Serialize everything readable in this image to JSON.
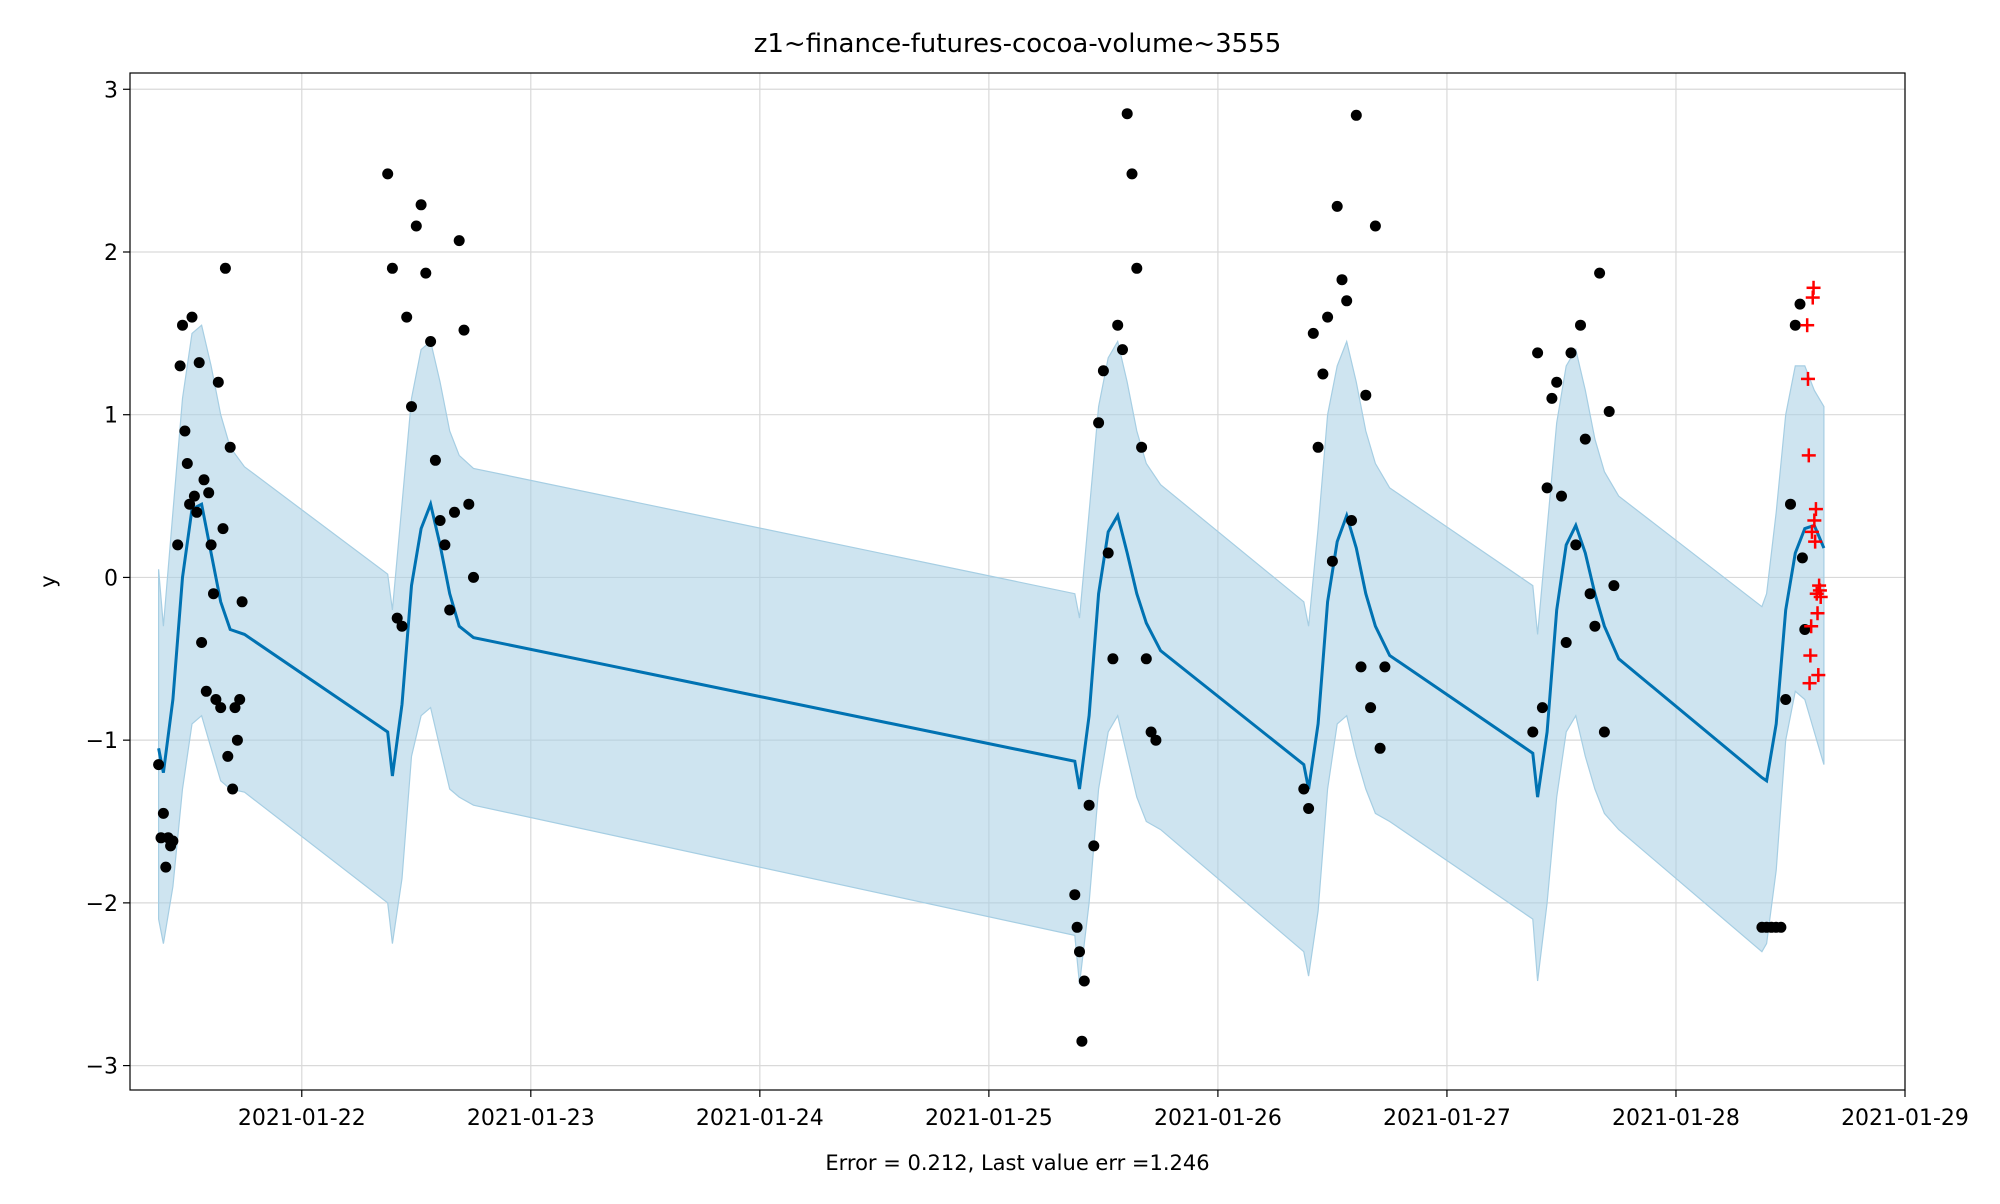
{
  "chart_data": {
    "type": "line",
    "title": "z1~finance-futures-cocoa-volume~3555",
    "xlabel": "Error = 0.212, Last value err =1.246",
    "ylabel": "y",
    "x_type": "date",
    "xlim": [
      "2021-01-21 06:00",
      "2021-01-29 00:00"
    ],
    "ylim": [
      -3.15,
      3.1
    ],
    "x_ticks": [
      "2021-01-22",
      "2021-01-23",
      "2021-01-24",
      "2021-01-25",
      "2021-01-26",
      "2021-01-27",
      "2021-01-28",
      "2021-01-29"
    ],
    "y_ticks": [
      -3,
      -2,
      -1,
      0,
      1,
      2,
      3
    ],
    "y_tick_labels": [
      "−3",
      "−2",
      "−1",
      "0",
      "1",
      "2",
      "3"
    ],
    "grid": true,
    "colors": {
      "forecast_line": "#0072b2",
      "band": "#a6cee3",
      "observed": "#000000",
      "future": "#ff0000"
    },
    "series": [
      {
        "role": "forecast",
        "x": [
          "2021-01-21 09:00",
          "2021-01-21 09:30",
          "2021-01-21 10:30",
          "2021-01-21 11:30",
          "2021-01-21 12:30",
          "2021-01-21 13:30",
          "2021-01-21 14:30",
          "2021-01-21 15:30",
          "2021-01-21 16:30",
          "2021-01-21 18:00",
          "2021-01-22 09:00",
          "2021-01-22 09:30",
          "2021-01-22 10:30",
          "2021-01-22 11:30",
          "2021-01-22 12:30",
          "2021-01-22 13:30",
          "2021-01-22 14:30",
          "2021-01-22 15:30",
          "2021-01-22 16:30",
          "2021-01-22 18:00",
          "2021-01-25 09:00",
          "2021-01-25 09:30",
          "2021-01-25 10:30",
          "2021-01-25 11:30",
          "2021-01-25 12:30",
          "2021-01-25 13:30",
          "2021-01-25 14:30",
          "2021-01-25 15:30",
          "2021-01-25 16:30",
          "2021-01-25 18:00",
          "2021-01-26 09:00",
          "2021-01-26 09:30",
          "2021-01-26 10:30",
          "2021-01-26 11:30",
          "2021-01-26 12:30",
          "2021-01-26 13:30",
          "2021-01-26 14:30",
          "2021-01-26 15:30",
          "2021-01-26 16:30",
          "2021-01-26 18:00",
          "2021-01-27 09:00",
          "2021-01-27 09:30",
          "2021-01-27 10:30",
          "2021-01-27 11:30",
          "2021-01-27 12:30",
          "2021-01-27 13:30",
          "2021-01-27 14:30",
          "2021-01-27 15:30",
          "2021-01-27 16:30",
          "2021-01-27 18:00",
          "2021-01-28 09:00",
          "2021-01-28 09:30",
          "2021-01-28 10:30",
          "2021-01-28 11:30",
          "2021-01-28 12:30",
          "2021-01-28 13:30",
          "2021-01-28 14:30",
          "2021-01-28 15:30"
        ],
        "values": [
          -1.05,
          -1.2,
          -0.75,
          0.0,
          0.42,
          0.45,
          0.15,
          -0.15,
          -0.32,
          -0.35,
          -0.95,
          -1.22,
          -0.78,
          -0.05,
          0.3,
          0.45,
          0.2,
          -0.1,
          -0.3,
          -0.37,
          -1.13,
          -1.3,
          -0.85,
          -0.1,
          0.28,
          0.38,
          0.15,
          -0.1,
          -0.28,
          -0.45,
          -1.15,
          -1.3,
          -0.9,
          -0.15,
          0.22,
          0.38,
          0.18,
          -0.1,
          -0.3,
          -0.48,
          -1.08,
          -1.35,
          -0.95,
          -0.2,
          0.2,
          0.32,
          0.15,
          -0.1,
          -0.3,
          -0.5,
          -1.23,
          -1.25,
          -0.9,
          -0.2,
          0.15,
          0.3,
          0.32,
          0.18
        ]
      },
      {
        "role": "interval",
        "x": [
          "2021-01-21 09:00",
          "2021-01-21 09:30",
          "2021-01-21 10:30",
          "2021-01-21 11:30",
          "2021-01-21 12:30",
          "2021-01-21 13:30",
          "2021-01-21 14:30",
          "2021-01-21 15:30",
          "2021-01-21 16:30",
          "2021-01-21 18:00",
          "2021-01-22 09:00",
          "2021-01-22 09:30",
          "2021-01-22 10:30",
          "2021-01-22 11:30",
          "2021-01-22 12:30",
          "2021-01-22 13:30",
          "2021-01-22 14:30",
          "2021-01-22 15:30",
          "2021-01-22 16:30",
          "2021-01-22 18:00",
          "2021-01-25 09:00",
          "2021-01-25 09:30",
          "2021-01-25 10:30",
          "2021-01-25 11:30",
          "2021-01-25 12:30",
          "2021-01-25 13:30",
          "2021-01-25 14:30",
          "2021-01-25 15:30",
          "2021-01-25 16:30",
          "2021-01-25 18:00",
          "2021-01-26 09:00",
          "2021-01-26 09:30",
          "2021-01-26 10:30",
          "2021-01-26 11:30",
          "2021-01-26 12:30",
          "2021-01-26 13:30",
          "2021-01-26 14:30",
          "2021-01-26 15:30",
          "2021-01-26 16:30",
          "2021-01-26 18:00",
          "2021-01-27 09:00",
          "2021-01-27 09:30",
          "2021-01-27 10:30",
          "2021-01-27 11:30",
          "2021-01-27 12:30",
          "2021-01-27 13:30",
          "2021-01-27 14:30",
          "2021-01-27 15:30",
          "2021-01-27 16:30",
          "2021-01-27 18:00",
          "2021-01-28 09:00",
          "2021-01-28 09:30",
          "2021-01-28 10:30",
          "2021-01-28 11:30",
          "2021-01-28 12:30",
          "2021-01-28 13:30",
          "2021-01-28 14:30",
          "2021-01-28 15:30"
        ],
        "upper": [
          0.05,
          -0.3,
          0.4,
          1.1,
          1.5,
          1.55,
          1.3,
          1.0,
          0.8,
          0.68,
          0.02,
          -0.2,
          0.45,
          1.1,
          1.4,
          1.45,
          1.2,
          0.9,
          0.75,
          0.67,
          -0.1,
          -0.25,
          0.4,
          1.05,
          1.35,
          1.45,
          1.2,
          0.9,
          0.7,
          0.57,
          -0.15,
          -0.3,
          0.3,
          1.0,
          1.3,
          1.45,
          1.2,
          0.9,
          0.7,
          0.55,
          -0.05,
          -0.35,
          0.3,
          0.95,
          1.3,
          1.4,
          1.15,
          0.85,
          0.65,
          0.5,
          -0.18,
          -0.1,
          0.4,
          1.0,
          1.3,
          1.3,
          1.15,
          1.05
        ],
        "lower": [
          -2.1,
          -2.25,
          -1.9,
          -1.3,
          -0.9,
          -0.85,
          -1.05,
          -1.25,
          -1.3,
          -1.32,
          -2.0,
          -2.25,
          -1.85,
          -1.1,
          -0.85,
          -0.8,
          -1.05,
          -1.3,
          -1.35,
          -1.4,
          -2.2,
          -2.5,
          -2.0,
          -1.3,
          -0.95,
          -0.85,
          -1.1,
          -1.35,
          -1.5,
          -1.55,
          -2.3,
          -2.45,
          -2.05,
          -1.3,
          -0.9,
          -0.85,
          -1.1,
          -1.3,
          -1.45,
          -1.5,
          -2.1,
          -2.48,
          -2.0,
          -1.35,
          -0.95,
          -0.85,
          -1.1,
          -1.3,
          -1.45,
          -1.55,
          -2.3,
          -2.25,
          -1.8,
          -1.0,
          -0.7,
          -0.75,
          -0.95,
          -1.15
        ]
      },
      {
        "role": "observed",
        "x": [
          "2021-01-21 09:00",
          "2021-01-21 09:15",
          "2021-01-21 09:30",
          "2021-01-21 09:45",
          "2021-01-21 10:00",
          "2021-01-21 10:15",
          "2021-01-21 10:30",
          "2021-01-21 11:00",
          "2021-01-21 11:15",
          "2021-01-21 11:30",
          "2021-01-21 11:45",
          "2021-01-21 12:00",
          "2021-01-21 12:15",
          "2021-01-21 12:30",
          "2021-01-21 12:45",
          "2021-01-21 13:00",
          "2021-01-21 13:15",
          "2021-01-21 13:30",
          "2021-01-21 13:45",
          "2021-01-21 14:00",
          "2021-01-21 14:15",
          "2021-01-21 14:30",
          "2021-01-21 14:45",
          "2021-01-21 15:00",
          "2021-01-21 15:15",
          "2021-01-21 15:30",
          "2021-01-21 15:45",
          "2021-01-21 16:00",
          "2021-01-21 16:15",
          "2021-01-21 16:30",
          "2021-01-21 16:45",
          "2021-01-21 17:00",
          "2021-01-21 17:15",
          "2021-01-21 17:30",
          "2021-01-21 17:45",
          "2021-01-22 09:00",
          "2021-01-22 09:30",
          "2021-01-22 10:00",
          "2021-01-22 10:30",
          "2021-01-22 11:00",
          "2021-01-22 11:30",
          "2021-01-22 12:00",
          "2021-01-22 12:30",
          "2021-01-22 13:00",
          "2021-01-22 13:30",
          "2021-01-22 14:00",
          "2021-01-22 14:30",
          "2021-01-22 15:00",
          "2021-01-22 15:30",
          "2021-01-22 16:00",
          "2021-01-22 16:30",
          "2021-01-22 17:00",
          "2021-01-22 17:30",
          "2021-01-22 18:00",
          "2021-01-25 09:00",
          "2021-01-25 09:15",
          "2021-01-25 09:30",
          "2021-01-25 09:45",
          "2021-01-25 10:00",
          "2021-01-25 10:30",
          "2021-01-25 11:00",
          "2021-01-25 11:30",
          "2021-01-25 12:00",
          "2021-01-25 12:30",
          "2021-01-25 13:00",
          "2021-01-25 13:30",
          "2021-01-25 14:00",
          "2021-01-25 14:30",
          "2021-01-25 15:00",
          "2021-01-25 15:30",
          "2021-01-25 16:00",
          "2021-01-25 16:30",
          "2021-01-25 17:00",
          "2021-01-25 17:30",
          "2021-01-26 09:00",
          "2021-01-26 09:30",
          "2021-01-26 10:00",
          "2021-01-26 10:30",
          "2021-01-26 11:00",
          "2021-01-26 11:30",
          "2021-01-26 12:00",
          "2021-01-26 12:30",
          "2021-01-26 13:00",
          "2021-01-26 13:30",
          "2021-01-26 14:00",
          "2021-01-26 14:30",
          "2021-01-26 15:00",
          "2021-01-26 15:30",
          "2021-01-26 16:00",
          "2021-01-26 16:30",
          "2021-01-26 17:00",
          "2021-01-26 17:30",
          "2021-01-27 09:00",
          "2021-01-27 09:30",
          "2021-01-27 10:00",
          "2021-01-27 10:30",
          "2021-01-27 11:00",
          "2021-01-27 11:30",
          "2021-01-27 12:00",
          "2021-01-27 12:30",
          "2021-01-27 13:00",
          "2021-01-27 13:30",
          "2021-01-27 14:00",
          "2021-01-27 14:30",
          "2021-01-27 15:00",
          "2021-01-27 15:30",
          "2021-01-27 16:00",
          "2021-01-27 16:30",
          "2021-01-27 17:00",
          "2021-01-27 17:30",
          "2021-01-28 09:00",
          "2021-01-28 09:30",
          "2021-01-28 10:00",
          "2021-01-28 10:30",
          "2021-01-28 11:00",
          "2021-01-28 11:30",
          "2021-01-28 12:00",
          "2021-01-28 12:30",
          "2021-01-28 13:00",
          "2021-01-28 13:15",
          "2021-01-28 13:30"
        ],
        "values": [
          -1.15,
          -1.6,
          -1.45,
          -1.78,
          -1.6,
          -1.65,
          -1.62,
          0.2,
          1.3,
          1.55,
          0.9,
          0.7,
          0.45,
          1.6,
          0.5,
          0.4,
          1.32,
          -0.4,
          0.6,
          -0.7,
          0.52,
          0.2,
          -0.1,
          -0.75,
          1.2,
          -0.8,
          0.3,
          1.9,
          -1.1,
          0.8,
          -1.3,
          -0.8,
          -1.0,
          -0.75,
          -0.15,
          2.48,
          1.9,
          -0.25,
          -0.3,
          1.6,
          1.05,
          2.16,
          2.29,
          1.87,
          1.45,
          0.72,
          0.35,
          0.2,
          -0.2,
          0.4,
          2.07,
          1.52,
          0.45,
          0.0,
          -1.95,
          -2.15,
          -2.3,
          -2.85,
          -2.48,
          -1.4,
          -1.65,
          0.95,
          1.27,
          0.15,
          -0.5,
          1.55,
          1.4,
          2.85,
          2.48,
          1.9,
          0.8,
          -0.5,
          -0.95,
          -1.0,
          -1.3,
          -1.42,
          1.5,
          0.8,
          1.25,
          1.6,
          0.1,
          2.28,
          1.83,
          1.7,
          0.35,
          2.84,
          -0.55,
          1.12,
          -0.8,
          2.16,
          -1.05,
          -0.55,
          -0.95,
          1.38,
          -0.8,
          0.55,
          1.1,
          1.2,
          0.5,
          -0.4,
          1.38,
          0.2,
          1.55,
          0.85,
          -0.1,
          -0.3,
          1.87,
          -0.95,
          1.02,
          -0.05,
          -2.15,
          -2.15,
          -2.15,
          -2.15,
          -2.15,
          -0.75,
          0.45,
          1.55,
          1.68,
          0.12,
          -0.32
        ]
      },
      {
        "role": "future",
        "x": [
          "2021-01-28 13:45",
          "2021-01-28 13:50",
          "2021-01-28 13:55",
          "2021-01-28 14:00",
          "2021-01-28 14:05",
          "2021-01-28 14:10",
          "2021-01-28 14:15",
          "2021-01-28 14:20",
          "2021-01-28 14:25",
          "2021-01-28 14:30",
          "2021-01-28 14:35",
          "2021-01-28 14:40",
          "2021-01-28 14:45",
          "2021-01-28 14:50",
          "2021-01-28 14:55",
          "2021-01-28 15:00",
          "2021-01-28 15:05",
          "2021-01-28 15:10"
        ],
        "values": [
          1.55,
          1.22,
          0.75,
          -0.65,
          -0.48,
          -0.3,
          0.28,
          1.72,
          1.78,
          0.35,
          0.22,
          0.42,
          -0.1,
          -0.22,
          -0.6,
          -0.05,
          -0.08,
          -0.12
        ]
      }
    ]
  }
}
